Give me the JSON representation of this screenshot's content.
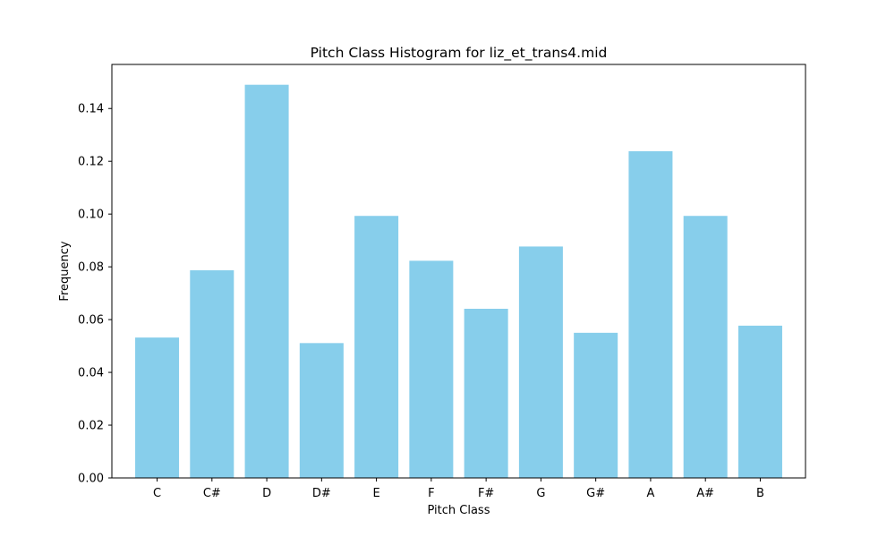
{
  "chart_data": {
    "type": "bar",
    "title": "Pitch Class Histogram for liz_et_trans4.mid",
    "xlabel": "Pitch Class",
    "ylabel": "Frequency",
    "categories": [
      "C",
      "C#",
      "D",
      "D#",
      "E",
      "F",
      "F#",
      "G",
      "G#",
      "A",
      "A#",
      "B"
    ],
    "values": [
      0.0532,
      0.0787,
      0.149,
      0.0511,
      0.0993,
      0.0823,
      0.0641,
      0.0877,
      0.055,
      0.1238,
      0.0993,
      0.0577
    ],
    "ylim": [
      0,
      0.1567
    ],
    "yticks": [
      0.0,
      0.02,
      0.04,
      0.06,
      0.08,
      0.1,
      0.12,
      0.14
    ],
    "ytick_labels": [
      "0.00",
      "0.02",
      "0.04",
      "0.06",
      "0.08",
      "0.10",
      "0.12",
      "0.14"
    ],
    "bar_color": "#87ceeb",
    "grid": false,
    "legend": "none"
  }
}
